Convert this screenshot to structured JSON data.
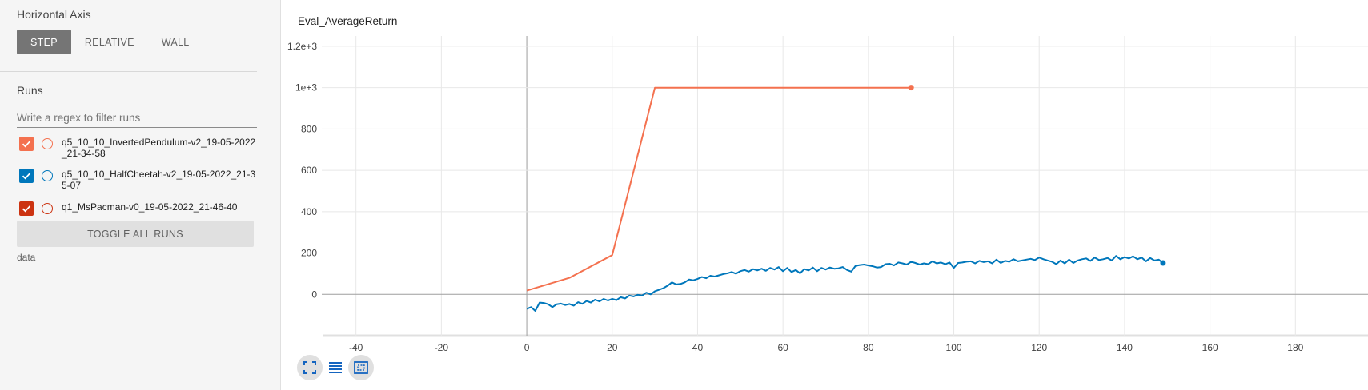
{
  "sidebar": {
    "horizontal_axis_title": "Horizontal Axis",
    "axis_buttons": [
      "STEP",
      "RELATIVE",
      "WALL"
    ],
    "active_axis": "STEP",
    "runs_title": "Runs",
    "filter_placeholder": "Write a regex to filter runs",
    "runs": [
      {
        "name": "q5_10_10_InvertedPendulum-v2_19-05-2022_21-34-58",
        "color": "#f4714f",
        "checked": true
      },
      {
        "name": "q5_10_10_HalfCheetah-v2_19-05-2022_21-35-07",
        "color": "#0077bb",
        "checked": true
      },
      {
        "name": "q1_MsPacman-v0_19-05-2022_21-46-40",
        "color": "#cc3311",
        "checked": true
      }
    ],
    "toggle_all_label": "TOGGLE ALL RUNS",
    "data_label": "data"
  },
  "main": {
    "chart_title": "Eval_AverageReturn",
    "tools": [
      "fit-domain-icon",
      "log-scale-icon",
      "data-selection-icon"
    ]
  },
  "chart_data": {
    "type": "line",
    "title": "Eval_AverageReturn",
    "xlabel": "",
    "ylabel": "",
    "xlim": [
      -48,
      197
    ],
    "ylim": [
      -200,
      1250
    ],
    "x_ticks": [
      -40,
      -20,
      0,
      20,
      40,
      60,
      80,
      100,
      120,
      140,
      160,
      180
    ],
    "y_ticks": [
      {
        "value": 0,
        "label": "0"
      },
      {
        "value": 200,
        "label": "200"
      },
      {
        "value": 400,
        "label": "400"
      },
      {
        "value": 600,
        "label": "600"
      },
      {
        "value": 800,
        "label": "800"
      },
      {
        "value": 1000,
        "label": "1e+3"
      },
      {
        "value": 1200,
        "label": "1.2e+3"
      }
    ],
    "grid": true,
    "series": [
      {
        "run": "q5_10_10_InvertedPendulum-v2_19-05-2022_21-34-58",
        "color": "#f4714f",
        "x": [
          0,
          10,
          20,
          30,
          40,
          50,
          60,
          70,
          80,
          90
        ],
        "y": [
          18,
          80,
          190,
          1000,
          1000,
          1000,
          1000,
          1000,
          1000,
          1000
        ]
      },
      {
        "run": "q5_10_10_HalfCheetah-v2_19-05-2022_21-35-07",
        "color": "#0077bb",
        "x": [
          0,
          1,
          2,
          3,
          4,
          5,
          6,
          7,
          8,
          9,
          10,
          11,
          12,
          13,
          14,
          15,
          16,
          17,
          18,
          19,
          20,
          21,
          22,
          23,
          24,
          25,
          26,
          27,
          28,
          29,
          30,
          31,
          32,
          33,
          34,
          35,
          36,
          37,
          38,
          39,
          40,
          41,
          42,
          43,
          44,
          45,
          46,
          47,
          48,
          49,
          50,
          51,
          52,
          53,
          54,
          55,
          56,
          57,
          58,
          59,
          60,
          61,
          62,
          63,
          64,
          65,
          66,
          67,
          68,
          69,
          70,
          71,
          72,
          73,
          74,
          75,
          76,
          77,
          78,
          79,
          80,
          81,
          82,
          83,
          84,
          85,
          86,
          87,
          88,
          89,
          90,
          91,
          92,
          93,
          94,
          95,
          96,
          97,
          98,
          99,
          100,
          101,
          102,
          103,
          104,
          105,
          106,
          107,
          108,
          109,
          110,
          111,
          112,
          113,
          114,
          115,
          116,
          117,
          118,
          119,
          120,
          121,
          122,
          123,
          124,
          125,
          126,
          127,
          128,
          129,
          130,
          131,
          132,
          133,
          134,
          135,
          136,
          137,
          138,
          139,
          140,
          141,
          142,
          143,
          144,
          145,
          146,
          147,
          148,
          149
        ],
        "y": [
          -70,
          -62,
          -80,
          -40,
          -42,
          -48,
          -62,
          -48,
          -45,
          -52,
          -47,
          -55,
          -38,
          -46,
          -32,
          -40,
          -26,
          -34,
          -22,
          -30,
          -22,
          -28,
          -14,
          -20,
          -6,
          -10,
          -2,
          -6,
          8,
          0,
          15,
          22,
          30,
          42,
          58,
          48,
          50,
          58,
          72,
          68,
          75,
          84,
          78,
          90,
          86,
          92,
          98,
          102,
          108,
          100,
          112,
          118,
          110,
          122,
          116,
          124,
          114,
          128,
          120,
          132,
          112,
          128,
          108,
          118,
          102,
          122,
          116,
          130,
          112,
          128,
          120,
          130,
          124,
          126,
          132,
          118,
          110,
          138,
          142,
          144,
          140,
          136,
          130,
          132,
          146,
          148,
          140,
          154,
          150,
          144,
          158,
          152,
          144,
          150,
          146,
          160,
          150,
          154,
          146,
          154,
          128,
          152,
          154,
          158,
          160,
          150,
          162,
          156,
          160,
          150,
          168,
          152,
          162,
          158,
          170,
          160,
          164,
          168,
          172,
          166,
          178,
          170,
          164,
          158,
          146,
          164,
          150,
          168,
          152,
          164,
          170,
          174,
          162,
          178,
          166,
          170,
          176,
          164,
          186,
          170,
          180,
          174,
          184,
          170,
          178,
          160,
          176,
          164,
          168,
          152
        ]
      }
    ]
  }
}
